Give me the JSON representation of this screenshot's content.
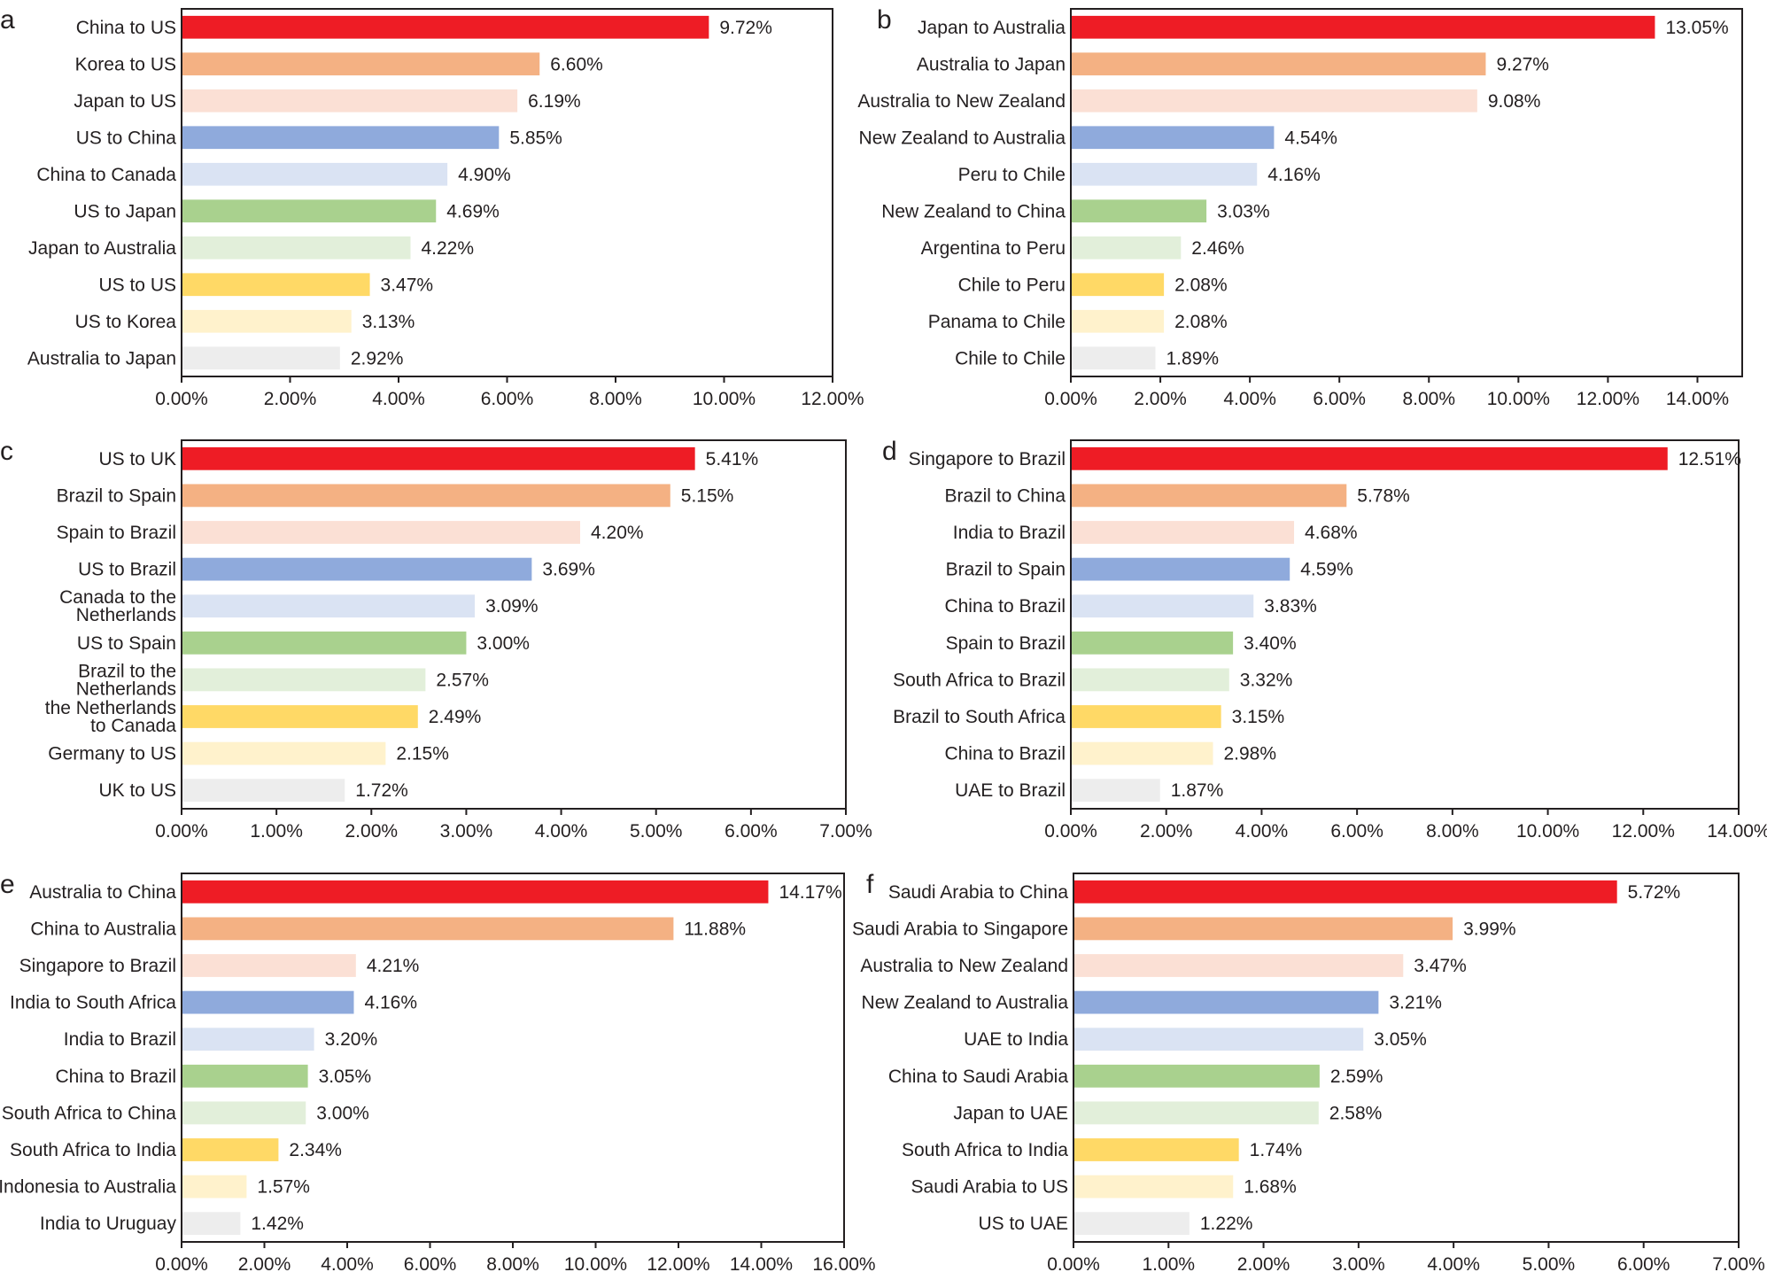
{
  "palette": [
    "#ee1c25",
    "#f4b183",
    "#fbe0d5",
    "#8faadc",
    "#dae3f3",
    "#a9d18e",
    "#e2efda",
    "#ffd966",
    "#fff2cc",
    "#ededed"
  ],
  "chart_data": [
    {
      "panel": "a",
      "type": "bar",
      "orientation": "horizontal",
      "categories": [
        "China to US",
        "Korea to US",
        "Japan to US",
        "US to China",
        "China to Canada",
        "US to Japan",
        "Japan to Australia",
        "US to US",
        "US to Korea",
        "Australia to Japan"
      ],
      "values": [
        9.72,
        6.6,
        6.19,
        5.85,
        4.9,
        4.69,
        4.22,
        3.47,
        3.13,
        2.92
      ],
      "value_labels": [
        "9.72%",
        "6.60%",
        "6.19%",
        "5.85%",
        "4.90%",
        "4.69%",
        "4.22%",
        "3.47%",
        "3.13%",
        "2.92%"
      ],
      "xlim": [
        0,
        12
      ],
      "xticks": [
        0,
        2,
        4,
        6,
        8,
        10,
        12
      ],
      "xtick_labels": [
        "0.00%",
        "2.00%",
        "4.00%",
        "6.00%",
        "8.00%",
        "10.00%",
        "12.00%"
      ],
      "grid": false,
      "legend": "none"
    },
    {
      "panel": "b",
      "type": "bar",
      "orientation": "horizontal",
      "categories": [
        "Japan to Australia",
        "Australia to Japan",
        "Australia to New Zealand",
        "New Zealand to Australia",
        "Peru to Chile",
        "New Zealand to China",
        "Argentina to Peru",
        "Chile to Peru",
        "Panama to Chile",
        "Chile to Chile"
      ],
      "values": [
        13.05,
        9.27,
        9.08,
        4.54,
        4.16,
        3.03,
        2.46,
        2.08,
        2.08,
        1.89
      ],
      "value_labels": [
        "13.05%",
        "9.27%",
        "9.08%",
        "4.54%",
        "4.16%",
        "3.03%",
        "2.46%",
        "2.08%",
        "2.08%",
        "1.89%"
      ],
      "xlim": [
        0,
        15
      ],
      "xticks": [
        0,
        2,
        4,
        6,
        8,
        10,
        12,
        14
      ],
      "xtick_labels": [
        "0.00%",
        "2.00%",
        "4.00%",
        "6.00%",
        "8.00%",
        "10.00%",
        "12.00%",
        "14.00%"
      ],
      "grid": false,
      "legend": "none"
    },
    {
      "panel": "c",
      "type": "bar",
      "orientation": "horizontal",
      "categories": [
        "US to UK",
        "Brazil to Spain",
        "Spain to Brazil",
        "US to Brazil",
        "Canada to the Netherlands",
        "US to Spain",
        "Brazil to the Netherlands",
        "the Netherlands to Canada",
        "Germany to US",
        "UK to US"
      ],
      "category_lines": [
        [
          "US to UK"
        ],
        [
          "Brazil to Spain"
        ],
        [
          "Spain to Brazil"
        ],
        [
          "US to Brazil"
        ],
        [
          "Canada to the",
          "Netherlands"
        ],
        [
          "US to Spain"
        ],
        [
          "Brazil to the",
          "Netherlands"
        ],
        [
          "the Netherlands",
          "to Canada"
        ],
        [
          "Germany to US"
        ],
        [
          "UK to US"
        ]
      ],
      "values": [
        5.41,
        5.15,
        4.2,
        3.69,
        3.09,
        3.0,
        2.57,
        2.49,
        2.15,
        1.72
      ],
      "value_labels": [
        "5.41%",
        "5.15%",
        "4.20%",
        "3.69%",
        "3.09%",
        "3.00%",
        "2.57%",
        "2.49%",
        "2.15%",
        "1.72%"
      ],
      "xlim": [
        0,
        7
      ],
      "xticks": [
        0,
        1,
        2,
        3,
        4,
        5,
        6,
        7
      ],
      "xtick_labels": [
        "0.00%",
        "1.00%",
        "2.00%",
        "3.00%",
        "4.00%",
        "5.00%",
        "6.00%",
        "7.00%"
      ],
      "grid": false,
      "legend": "none"
    },
    {
      "panel": "d",
      "type": "bar",
      "orientation": "horizontal",
      "categories": [
        "Singapore to Brazil",
        "Brazil to China",
        "India to Brazil",
        "Brazil to Spain",
        "China to Brazil",
        "Spain to Brazil",
        "South Africa to Brazil",
        "Brazil to South Africa",
        "China to Brazil",
        "UAE to Brazil"
      ],
      "values": [
        12.51,
        5.78,
        4.68,
        4.59,
        3.83,
        3.4,
        3.32,
        3.15,
        2.98,
        1.87
      ],
      "value_labels": [
        "12.51%",
        "5.78%",
        "4.68%",
        "4.59%",
        "3.83%",
        "3.40%",
        "3.32%",
        "3.15%",
        "2.98%",
        "1.87%"
      ],
      "xlim": [
        0,
        14
      ],
      "xticks": [
        0,
        2,
        4,
        6,
        8,
        10,
        12,
        14
      ],
      "xtick_labels": [
        "0.00%",
        "2.00%",
        "4.00%",
        "6.00%",
        "8.00%",
        "10.00%",
        "12.00%",
        "14.00%"
      ],
      "grid": false,
      "legend": "none"
    },
    {
      "panel": "e",
      "type": "bar",
      "orientation": "horizontal",
      "categories": [
        "Australia to China",
        "China to Australia",
        "Singapore to Brazil",
        "India to South Africa",
        "India to Brazil",
        "China to Brazil",
        "South Africa to China",
        "South Africa to India",
        "Indonesia to Australia",
        "India to Uruguay"
      ],
      "values": [
        14.17,
        11.88,
        4.21,
        4.16,
        3.2,
        3.05,
        3.0,
        2.34,
        1.57,
        1.42
      ],
      "value_labels": [
        "14.17%",
        "11.88%",
        "4.21%",
        "4.16%",
        "3.20%",
        "3.05%",
        "3.00%",
        "2.34%",
        "1.57%",
        "1.42%"
      ],
      "xlim": [
        0,
        16
      ],
      "xticks": [
        0,
        2,
        4,
        6,
        8,
        10,
        12,
        14,
        16
      ],
      "xtick_labels": [
        "0.00%",
        "2.00%",
        "4.00%",
        "6.00%",
        "8.00%",
        "10.00%",
        "12.00%",
        "14.00%",
        "16.00%"
      ],
      "grid": false,
      "legend": "none"
    },
    {
      "panel": "f",
      "type": "bar",
      "orientation": "horizontal",
      "categories": [
        "Saudi Arabia to China",
        "Saudi Arabia to Singapore",
        "Australia to New Zealand",
        "New Zealand to Australia",
        "UAE to India",
        "China to Saudi Arabia",
        "Japan to UAE",
        "South Africa to India",
        "Saudi Arabia to US",
        "US to UAE"
      ],
      "values": [
        5.72,
        3.99,
        3.47,
        3.21,
        3.05,
        2.59,
        2.58,
        1.74,
        1.68,
        1.22
      ],
      "value_labels": [
        "5.72%",
        "3.99%",
        "3.47%",
        "3.21%",
        "3.05%",
        "2.59%",
        "2.58%",
        "1.74%",
        "1.68%",
        "1.22%"
      ],
      "xlim": [
        0,
        7
      ],
      "xticks": [
        0,
        1,
        2,
        3,
        4,
        5,
        6,
        7
      ],
      "xtick_labels": [
        "0.00%",
        "1.00%",
        "2.00%",
        "3.00%",
        "4.00%",
        "5.00%",
        "6.00%",
        "7.00%"
      ],
      "grid": false,
      "legend": "none"
    }
  ]
}
